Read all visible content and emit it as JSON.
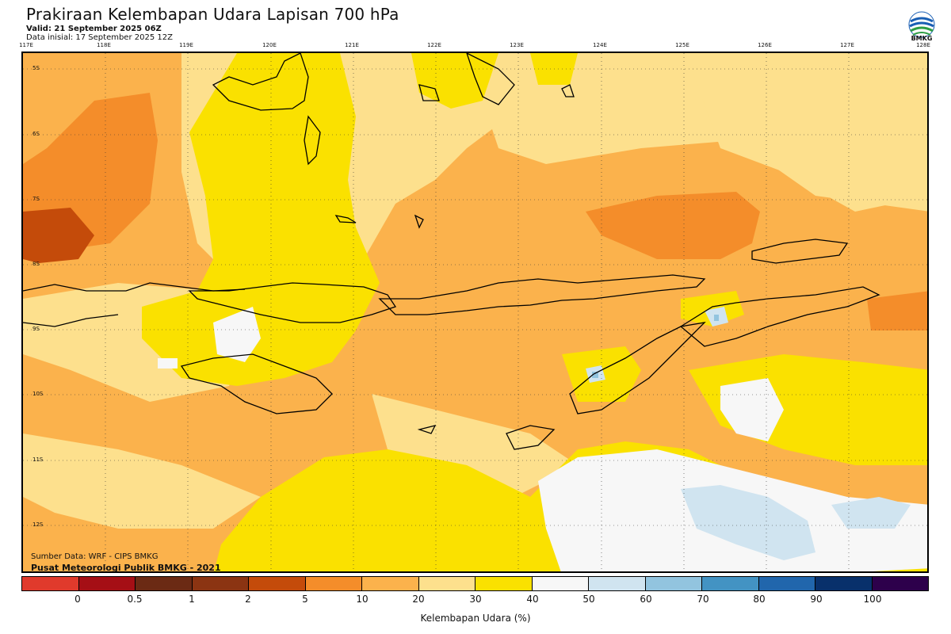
{
  "header": {
    "title": "Prakiraan Kelembapan Udara Lapisan 700 hPa",
    "valid": "Valid: 21 September 2025 06Z",
    "init": "Data inisial: 17 September 2025 12Z"
  },
  "logo": {
    "icon": "bmkg-logo-icon",
    "text": "BMKG"
  },
  "map": {
    "lon_labels": [
      "117E",
      "118E",
      "119E",
      "120E",
      "121E",
      "122E",
      "123E",
      "124E",
      "125E",
      "126E",
      "127E",
      "128E"
    ],
    "lat_labels": [
      "5S",
      "6S",
      "7S",
      "8S",
      "9S",
      "10S",
      "11S",
      "12S"
    ],
    "source_data": "Sumber Data: WRF - CIPS BMKG",
    "source_center": "Pusat Meteorologi Publik BMKG - 2021",
    "grid": true
  },
  "colorbar": {
    "colors": [
      "#e03a2c",
      "#a50f15",
      "#6b2a14",
      "#8b3412",
      "#c44b0a",
      "#f48d2a",
      "#fbb24c",
      "#fde08d",
      "#fae100",
      "#f7f7f7",
      "#d0e4f0",
      "#92c4df",
      "#4393c3",
      "#2166ac",
      "#08306b",
      "#2d004b"
    ],
    "ticks": [
      "0",
      "0.5",
      "1",
      "2",
      "5",
      "10",
      "20",
      "30",
      "40",
      "50",
      "60",
      "70",
      "80",
      "90",
      "100"
    ],
    "label": "Kelembapan Udara (%)"
  }
}
